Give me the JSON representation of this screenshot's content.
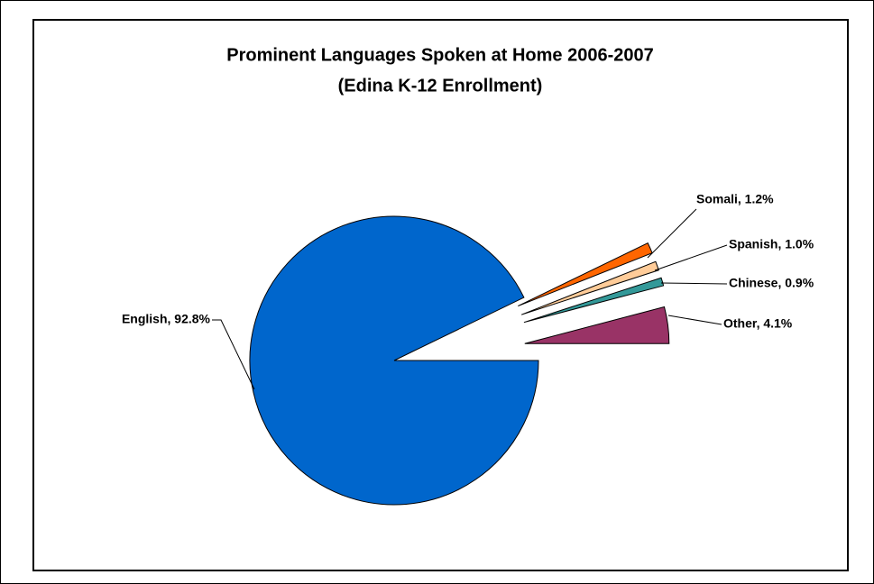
{
  "chart_data": {
    "type": "pie",
    "title": "Prominent Languages Spoken at Home 2006-2007",
    "subtitle": "(Edina K-12 Enrollment)",
    "values": [
      92.8,
      1.2,
      1.0,
      0.9,
      4.1
    ],
    "value_labels": [
      "English, 92.8%",
      "Somali, 1.2%",
      "Spanish, 1.0%",
      "Chinese, 0.9%",
      "Other, 4.1%"
    ],
    "colors": [
      "#0066cc",
      "#ff6600",
      "#ffcc99",
      "#339999",
      "#993366"
    ]
  }
}
